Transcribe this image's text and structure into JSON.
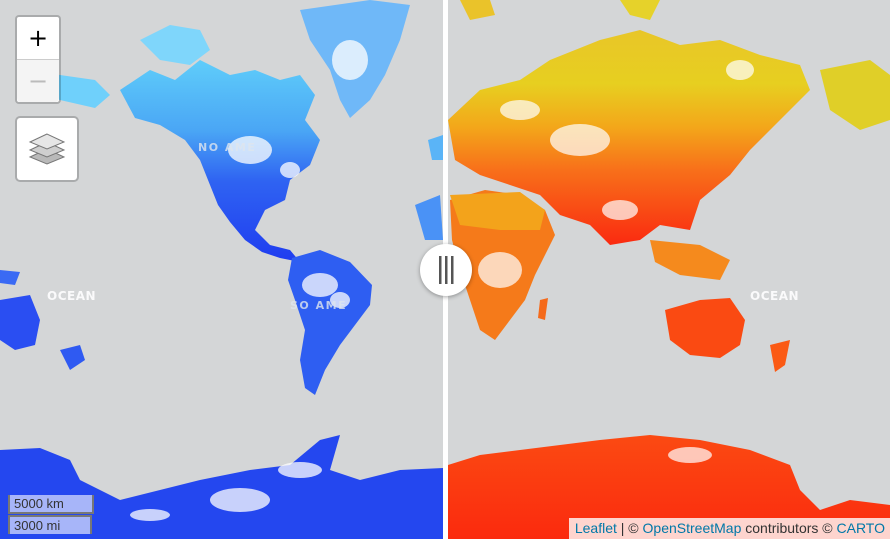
{
  "map": {
    "labels": {
      "ocean_left": "OCEAN",
      "ocean_right": "OCEAN",
      "north_america_fragment": "NO AME",
      "south_america_fragment": "SO AME"
    },
    "colors": {
      "background": "#d4d6d7",
      "left_cold_light": "#5fcdfa",
      "left_cold_deep": "#1f3cf0",
      "right_warm_yellow": "#e6d61e",
      "right_warm_orange": "#f59a1c",
      "right_warm_red": "#fa2a10",
      "divider": "#ffffff"
    }
  },
  "controls": {
    "zoom_in": "+",
    "zoom_out": "−",
    "layers_icon": "layers-icon",
    "swipe_handle_icon": "grip-lines-icon"
  },
  "scale": {
    "km": "5000 km",
    "mi": "3000 mi"
  },
  "attribution": {
    "leaflet": "Leaflet",
    "sep1": " | © ",
    "osm": "OpenStreetMap",
    "contributors": " contributors © ",
    "carto": "CARTO"
  }
}
